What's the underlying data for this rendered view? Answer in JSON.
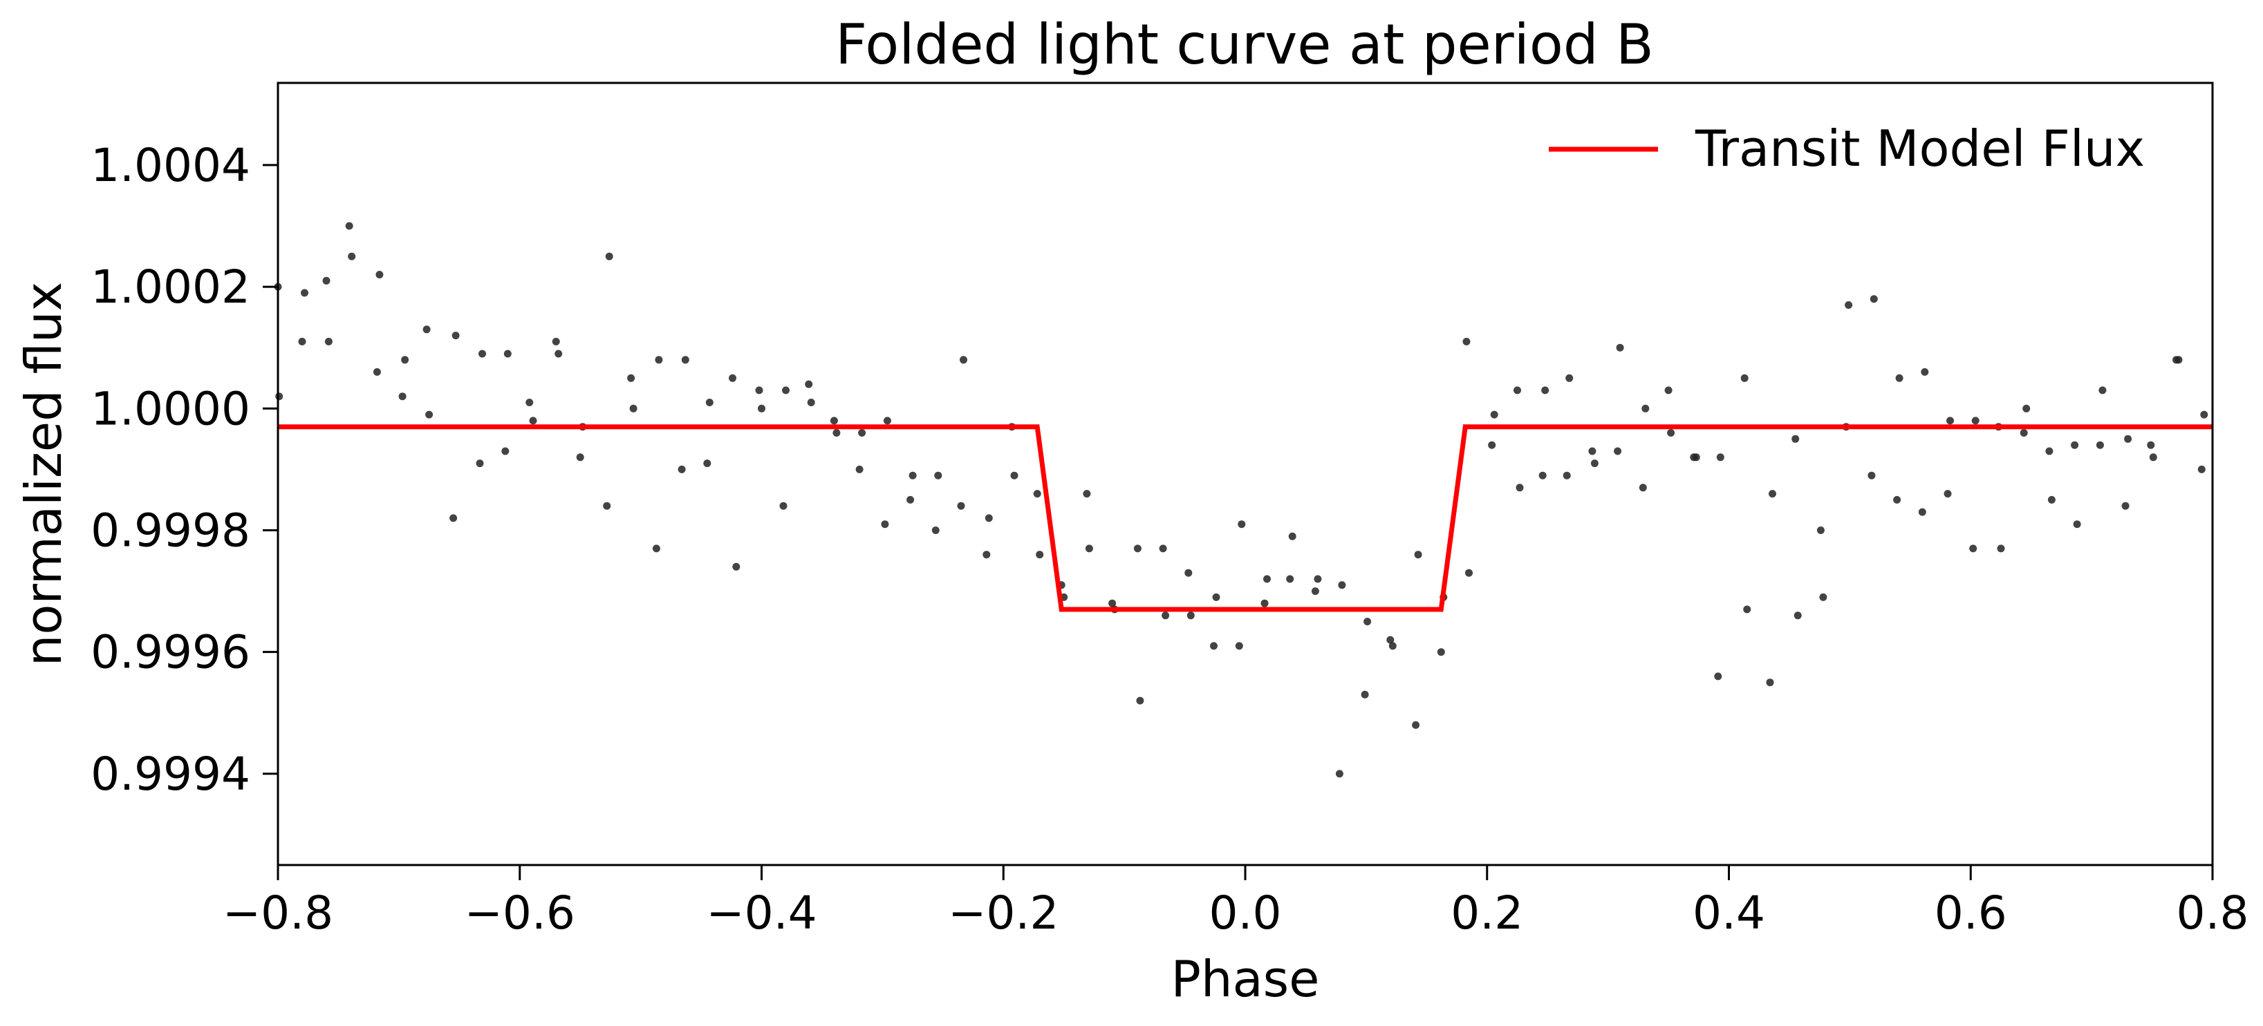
{
  "chart_data": {
    "type": "scatter",
    "title": "Folded light curve at period B",
    "xlabel": "Phase",
    "ylabel": "normalized flux",
    "xlim": [
      -0.8,
      0.8
    ],
    "ylim": [
      0.99925,
      1.000535
    ],
    "grid": false,
    "legend_position": "top-right",
    "x_ticks": [
      {
        "value": -0.8,
        "label": "−0.8"
      },
      {
        "value": -0.6,
        "label": "−0.6"
      },
      {
        "value": -0.4,
        "label": "−0.4"
      },
      {
        "value": -0.2,
        "label": "−0.2"
      },
      {
        "value": 0.0,
        "label": "0.0"
      },
      {
        "value": 0.2,
        "label": "0.2"
      },
      {
        "value": 0.4,
        "label": "0.4"
      },
      {
        "value": 0.6,
        "label": "0.6"
      },
      {
        "value": 0.8,
        "label": "0.8"
      }
    ],
    "y_ticks": [
      {
        "value": 0.9994,
        "label": "0.9994"
      },
      {
        "value": 0.9996,
        "label": "0.9996"
      },
      {
        "value": 0.9998,
        "label": "0.9998"
      },
      {
        "value": 1.0,
        "label": "1.0000"
      },
      {
        "value": 1.0002,
        "label": "1.0002"
      },
      {
        "value": 1.0004,
        "label": "1.0004"
      }
    ],
    "series": [
      {
        "kind": "scatter",
        "color": "#222222",
        "points": [
          [
            -0.8,
            1.0002
          ],
          [
            -0.799,
            1.00002
          ],
          [
            -0.78,
            1.00011
          ],
          [
            -0.778,
            1.00019
          ],
          [
            -0.76,
            1.00021
          ],
          [
            -0.758,
            1.00011
          ],
          [
            -0.741,
            1.0003
          ],
          [
            -0.739,
            1.00025
          ],
          [
            -0.718,
            1.00006
          ],
          [
            -0.716,
            1.00022
          ],
          [
            -0.697,
            1.00002
          ],
          [
            -0.695,
            1.00008
          ],
          [
            -0.677,
            1.00013
          ],
          [
            -0.675,
            0.99999
          ],
          [
            -0.655,
            0.99982
          ],
          [
            -0.653,
            1.00012
          ],
          [
            -0.633,
            0.99991
          ],
          [
            -0.631,
            1.00009
          ],
          [
            -0.612,
            0.99993
          ],
          [
            -0.61,
            1.00009
          ],
          [
            -0.592,
            1.00001
          ],
          [
            -0.589,
            0.99998
          ],
          [
            -0.57,
            1.00011
          ],
          [
            -0.568,
            1.00009
          ],
          [
            -0.55,
            0.99992
          ],
          [
            -0.548,
            0.99997
          ],
          [
            -0.528,
            0.99984
          ],
          [
            -0.526,
            1.00025
          ],
          [
            -0.508,
            1.00005
          ],
          [
            -0.506,
            1.0
          ],
          [
            -0.487,
            0.99977
          ],
          [
            -0.485,
            1.00008
          ],
          [
            -0.466,
            0.9999
          ],
          [
            -0.463,
            1.00008
          ],
          [
            -0.445,
            0.99991
          ],
          [
            -0.443,
            1.00001
          ],
          [
            -0.424,
            1.00005
          ],
          [
            -0.421,
            0.99974
          ],
          [
            -0.402,
            1.00003
          ],
          [
            -0.4,
            1.0
          ],
          [
            -0.382,
            0.99984
          ],
          [
            -0.38,
            1.00003
          ],
          [
            -0.361,
            1.00004
          ],
          [
            -0.359,
            1.00001
          ],
          [
            -0.34,
            0.99998
          ],
          [
            -0.338,
            0.99996
          ],
          [
            -0.319,
            0.9999
          ],
          [
            -0.317,
            0.99996
          ],
          [
            -0.298,
            0.99981
          ],
          [
            -0.296,
            0.99998
          ],
          [
            -0.277,
            0.99985
          ],
          [
            -0.275,
            0.99989
          ],
          [
            -0.256,
            0.9998
          ],
          [
            -0.254,
            0.99989
          ],
          [
            -0.235,
            0.99984
          ],
          [
            -0.233,
            1.00008
          ],
          [
            -0.214,
            0.99976
          ],
          [
            -0.212,
            0.99982
          ],
          [
            -0.193,
            0.99997
          ],
          [
            -0.191,
            0.99989
          ],
          [
            -0.172,
            0.99986
          ],
          [
            -0.17,
            0.99976
          ],
          [
            -0.152,
            0.99971
          ],
          [
            -0.15,
            0.99969
          ],
          [
            -0.131,
            0.99986
          ],
          [
            -0.129,
            0.99977
          ],
          [
            -0.11,
            0.99968
          ],
          [
            -0.108,
            0.99967
          ],
          [
            -0.089,
            0.99977
          ],
          [
            -0.087,
            0.99952
          ],
          [
            -0.068,
            0.99977
          ],
          [
            -0.066,
            0.99966
          ],
          [
            -0.047,
            0.99973
          ],
          [
            -0.045,
            0.99966
          ],
          [
            -0.026,
            0.99961
          ],
          [
            -0.024,
            0.99969
          ],
          [
            -0.005,
            0.99961
          ],
          [
            -0.003,
            0.99981
          ],
          [
            0.016,
            0.99968
          ],
          [
            0.018,
            0.99972
          ],
          [
            0.037,
            0.99972
          ],
          [
            0.039,
            0.99979
          ],
          [
            0.058,
            0.9997
          ],
          [
            0.06,
            0.99972
          ],
          [
            0.078,
            0.9994
          ],
          [
            0.08,
            0.99971
          ],
          [
            0.099,
            0.99953
          ],
          [
            0.101,
            0.99965
          ],
          [
            0.12,
            0.99962
          ],
          [
            0.122,
            0.99961
          ],
          [
            0.141,
            0.99948
          ],
          [
            0.143,
            0.99976
          ],
          [
            0.162,
            0.9996
          ],
          [
            0.164,
            0.99969
          ],
          [
            0.183,
            1.00011
          ],
          [
            0.185,
            0.99973
          ],
          [
            0.204,
            0.99994
          ],
          [
            0.206,
            0.99999
          ],
          [
            0.225,
            1.00003
          ],
          [
            0.227,
            0.99987
          ],
          [
            0.246,
            0.99989
          ],
          [
            0.248,
            1.00003
          ],
          [
            0.266,
            0.99989
          ],
          [
            0.268,
            1.00005
          ],
          [
            0.287,
            0.99993
          ],
          [
            0.289,
            0.99991
          ],
          [
            0.308,
            0.99993
          ],
          [
            0.31,
            1.0001
          ],
          [
            0.329,
            0.99987
          ],
          [
            0.331,
            1.0
          ],
          [
            0.35,
            1.00003
          ],
          [
            0.352,
            0.99996
          ],
          [
            0.371,
            0.99992
          ],
          [
            0.373,
            0.99992
          ],
          [
            0.391,
            0.99956
          ],
          [
            0.393,
            0.99992
          ],
          [
            0.413,
            1.00005
          ],
          [
            0.415,
            0.99967
          ],
          [
            0.434,
            0.99955
          ],
          [
            0.436,
            0.99986
          ],
          [
            0.455,
            0.99995
          ],
          [
            0.457,
            0.99966
          ],
          [
            0.476,
            0.9998
          ],
          [
            0.478,
            0.99969
          ],
          [
            0.497,
            0.99997
          ],
          [
            0.499,
            1.00017
          ],
          [
            0.518,
            0.99989
          ],
          [
            0.52,
            1.00018
          ],
          [
            0.539,
            0.99985
          ],
          [
            0.541,
            1.00005
          ],
          [
            0.56,
            0.99983
          ],
          [
            0.562,
            1.00006
          ],
          [
            0.581,
            0.99986
          ],
          [
            0.583,
            0.99998
          ],
          [
            0.602,
            0.99977
          ],
          [
            0.604,
            0.99998
          ],
          [
            0.623,
            0.99997
          ],
          [
            0.625,
            0.99977
          ],
          [
            0.644,
            0.99996
          ],
          [
            0.646,
            1.0
          ],
          [
            0.665,
            0.99993
          ],
          [
            0.667,
            0.99985
          ],
          [
            0.686,
            0.99994
          ],
          [
            0.688,
            0.99981
          ],
          [
            0.707,
            0.99994
          ],
          [
            0.709,
            1.00003
          ],
          [
            0.728,
            0.99984
          ],
          [
            0.73,
            0.99995
          ],
          [
            0.749,
            0.99994
          ],
          [
            0.751,
            0.99992
          ],
          [
            0.77,
            1.00008
          ],
          [
            0.772,
            1.00008
          ],
          [
            0.791,
            0.9999
          ],
          [
            0.793,
            0.99999
          ]
        ]
      },
      {
        "kind": "line",
        "name": "Transit Model Flux",
        "color": "#ff0000",
        "points": [
          [
            -0.8,
            0.99997
          ],
          [
            -0.172,
            0.99997
          ],
          [
            -0.152,
            0.99967
          ],
          [
            0.162,
            0.99967
          ],
          [
            0.182,
            0.99997
          ],
          [
            0.8,
            0.99997
          ]
        ]
      }
    ]
  }
}
